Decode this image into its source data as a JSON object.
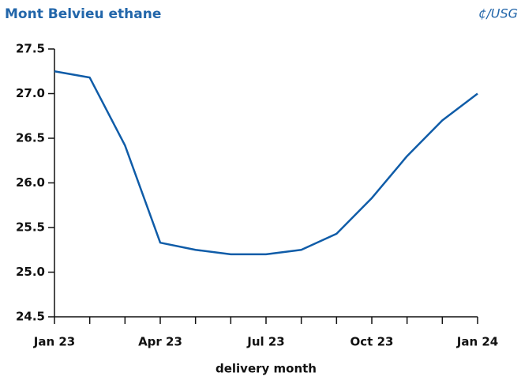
{
  "chart_data": {
    "type": "line",
    "title": "Mont Belvieu ethane",
    "unit_label": "¢/USG",
    "x_label": "delivery month",
    "categories": [
      "Jan 23",
      null,
      null,
      "Apr 23",
      null,
      null,
      "Jul 23",
      null,
      null,
      "Oct 23",
      null,
      null,
      "Jan 24"
    ],
    "series": [
      {
        "name": "Mont Belvieu ethane",
        "color": "#0f5ca8",
        "values": [
          27.25,
          27.18,
          26.42,
          25.33,
          25.25,
          25.2,
          25.2,
          25.25,
          25.43,
          25.83,
          26.3,
          26.7,
          27.0
        ]
      }
    ],
    "ylim": [
      24.5,
      27.5
    ],
    "yticks": [
      24.5,
      {
        "value": 25,
        "label": "25.0"
      },
      25.5,
      {
        "value": 26,
        "label": "26.0"
      },
      26.5,
      {
        "value": 27,
        "label": "27.0"
      },
      27.5
    ],
    "grid": false
  }
}
